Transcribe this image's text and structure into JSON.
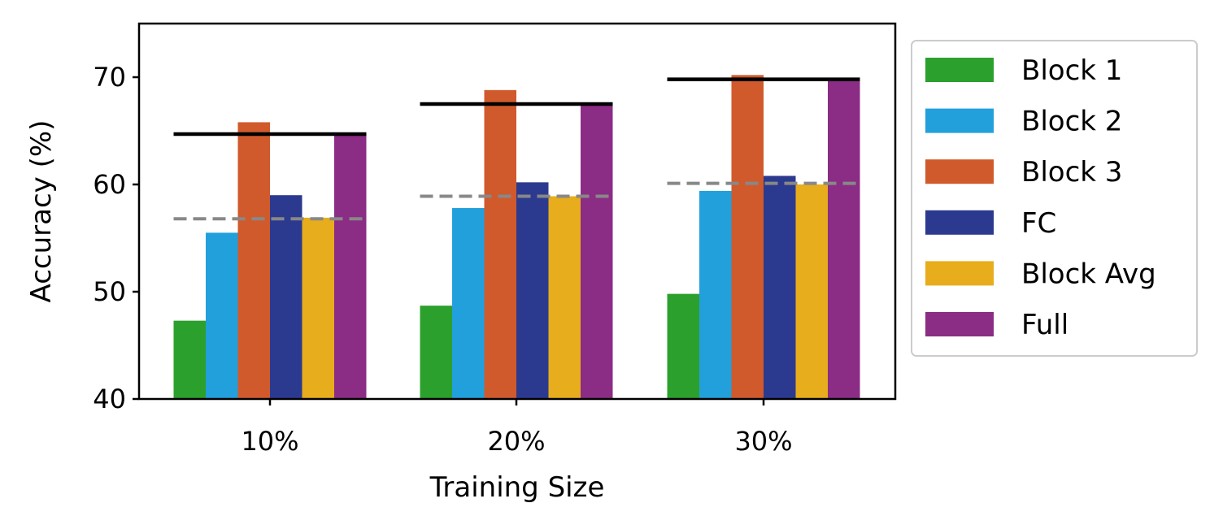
{
  "chart_data": {
    "type": "bar",
    "categories": [
      "10%",
      "20%",
      "30%"
    ],
    "series": [
      {
        "name": "Block 1",
        "color": "#2ca02c",
        "values": [
          47.3,
          48.7,
          49.8
        ]
      },
      {
        "name": "Block 2",
        "color": "#22a0dc",
        "values": [
          55.5,
          57.8,
          59.4
        ]
      },
      {
        "name": "Block 3",
        "color": "#d05a2c",
        "values": [
          65.8,
          68.8,
          70.2
        ]
      },
      {
        "name": "FC",
        "color": "#2b3a8f",
        "values": [
          59.0,
          60.2,
          60.8
        ]
      },
      {
        "name": "Block Avg",
        "color": "#e8ad1c",
        "values": [
          56.9,
          58.9,
          60.0
        ]
      },
      {
        "name": "Full",
        "color": "#8b2c85",
        "values": [
          64.8,
          67.4,
          69.8
        ]
      }
    ],
    "reference_lines": [
      {
        "style": "solid",
        "color": "#000000",
        "values": [
          64.7,
          67.5,
          69.8
        ]
      },
      {
        "style": "dashed",
        "color": "#888888",
        "values": [
          56.8,
          58.9,
          60.1
        ]
      }
    ],
    "title": "",
    "xlabel": "Training Size",
    "ylabel": "Accuracy (%)",
    "ylim": [
      40,
      75
    ],
    "yticks": [
      40,
      50,
      60,
      70
    ],
    "grid": false,
    "legend_position": "outside-right"
  }
}
